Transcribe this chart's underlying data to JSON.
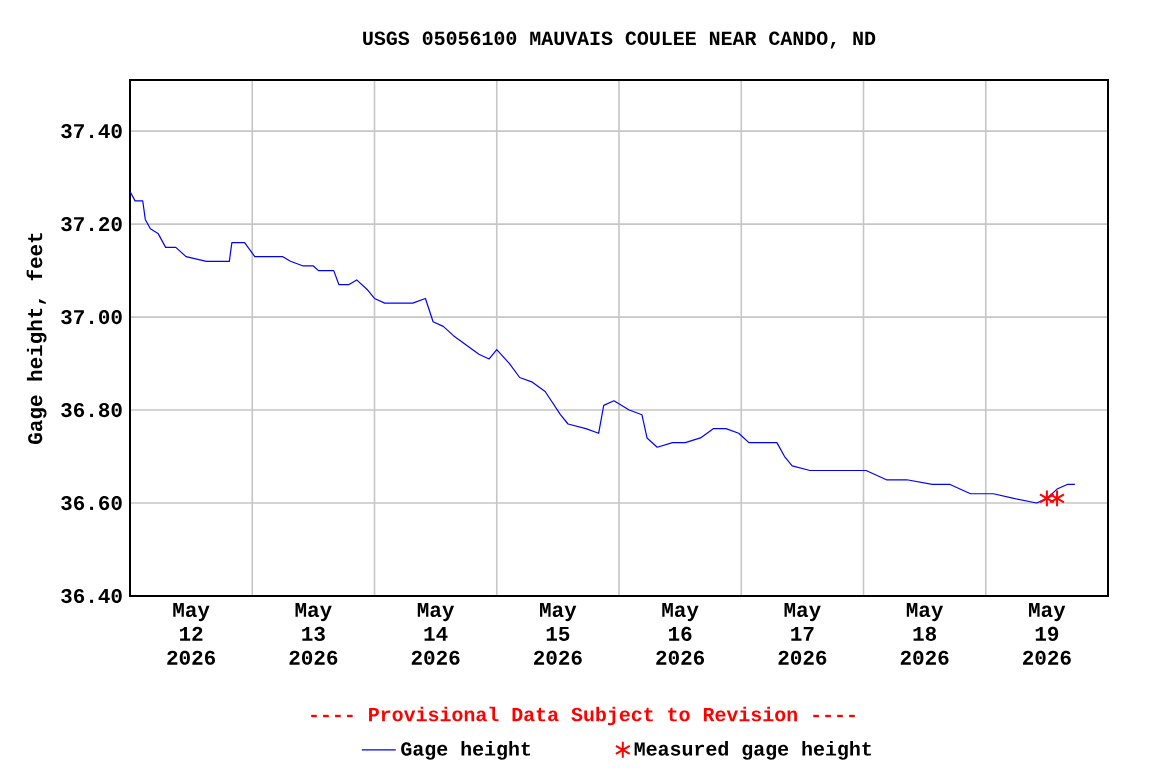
{
  "chart_data": {
    "type": "line",
    "title": "USGS 05056100 MAUVAIS COULEE NEAR CANDO, ND",
    "ylabel": "Gage height, feet",
    "annotations": [
      "---- Provisional Data Subject to Revision ----"
    ],
    "xlim": [
      "2026-05-12T00:00",
      "2026-05-20T00:00"
    ],
    "ylim": [
      36.4,
      37.51
    ],
    "xticks": [
      {
        "value": "2026-05-13T00:00",
        "label": null
      },
      {
        "value": "2026-05-14T00:00",
        "label": null
      },
      {
        "value": "2026-05-15T00:00",
        "label": null
      },
      {
        "value": "2026-05-16T00:00",
        "label": null
      },
      {
        "value": "2026-05-17T00:00",
        "label": null
      },
      {
        "value": "2026-05-18T00:00",
        "label": null
      },
      {
        "value": "2026-05-19T00:00",
        "label": null
      },
      {
        "value": "2026-05-12T12:00",
        "label": "May 12 2026"
      },
      {
        "value": "2026-05-13T12:00",
        "label": "May 13 2026"
      },
      {
        "value": "2026-05-14T12:00",
        "label": "May 14 2026"
      },
      {
        "value": "2026-05-15T12:00",
        "label": "May 15 2026"
      },
      {
        "value": "2026-05-16T12:00",
        "label": "May 16 2026"
      },
      {
        "value": "2026-05-17T12:00",
        "label": "May 17 2026"
      },
      {
        "value": "2026-05-18T12:00",
        "label": "May 18 2026"
      },
      {
        "value": "2026-05-19T12:00",
        "label": "May 19 2026"
      }
    ],
    "yticks": [
      {
        "value": 36.4,
        "label": "36.40"
      },
      {
        "value": 36.6,
        "label": "36.60"
      },
      {
        "value": 36.8,
        "label": "36.80"
      },
      {
        "value": 37.0,
        "label": "37.00"
      },
      {
        "value": 37.2,
        "label": "37.20"
      },
      {
        "value": 37.4,
        "label": "37.40"
      }
    ],
    "grid": true,
    "legend": "bottom",
    "series": [
      {
        "name": "Gage height",
        "color": "#0000ff",
        "marker": "none",
        "line_style": "solid",
        "x": [
          "2026-05-12T00:00",
          "2026-05-12T01:00",
          "2026-05-12T02:30",
          "2026-05-12T03:00",
          "2026-05-12T04:00",
          "2026-05-12T05:30",
          "2026-05-12T07:00",
          "2026-05-12T09:00",
          "2026-05-12T11:00",
          "2026-05-12T15:00",
          "2026-05-12T19:30",
          "2026-05-12T20:00",
          "2026-05-12T22:30",
          "2026-05-13T00:30",
          "2026-05-13T06:00",
          "2026-05-13T07:30",
          "2026-05-13T10:00",
          "2026-05-13T12:00",
          "2026-05-13T13:00",
          "2026-05-13T16:00",
          "2026-05-13T17:00",
          "2026-05-13T19:00",
          "2026-05-13T20:30",
          "2026-05-13T22:30",
          "2026-05-14T00:00",
          "2026-05-14T02:00",
          "2026-05-14T07:30",
          "2026-05-14T10:00",
          "2026-05-14T11:30",
          "2026-05-14T13:30",
          "2026-05-14T15:30",
          "2026-05-14T18:00",
          "2026-05-14T20:30",
          "2026-05-14T22:30",
          "2026-05-15T00:00",
          "2026-05-15T02:30",
          "2026-05-15T04:30",
          "2026-05-15T07:00",
          "2026-05-15T09:30",
          "2026-05-15T12:30",
          "2026-05-15T14:00",
          "2026-05-15T17:30",
          "2026-05-15T20:00",
          "2026-05-15T21:00",
          "2026-05-15T23:00",
          "2026-05-16T02:00",
          "2026-05-16T04:30",
          "2026-05-16T05:30",
          "2026-05-16T07:30",
          "2026-05-16T10:30",
          "2026-05-16T13:00",
          "2026-05-16T16:00",
          "2026-05-16T18:30",
          "2026-05-16T21:00",
          "2026-05-16T23:30",
          "2026-05-17T01:30",
          "2026-05-17T07:00",
          "2026-05-17T08:30",
          "2026-05-17T10:00",
          "2026-05-17T13:30",
          "2026-05-17T16:30",
          "2026-05-17T20:30",
          "2026-05-18T00:30",
          "2026-05-18T04:30",
          "2026-05-18T08:30",
          "2026-05-18T13:30",
          "2026-05-18T17:00",
          "2026-05-18T21:00",
          "2026-05-19T01:30",
          "2026-05-19T05:30",
          "2026-05-19T10:00",
          "2026-05-19T12:00",
          "2026-05-19T14:00",
          "2026-05-19T16:00",
          "2026-05-19T17:30"
        ],
        "values": [
          37.27,
          37.25,
          37.25,
          37.21,
          37.19,
          37.18,
          37.15,
          37.15,
          37.13,
          37.12,
          37.12,
          37.16,
          37.16,
          37.13,
          37.13,
          37.12,
          37.11,
          37.11,
          37.1,
          37.1,
          37.07,
          37.07,
          37.08,
          37.06,
          37.04,
          37.03,
          37.03,
          37.04,
          36.99,
          36.98,
          36.96,
          36.94,
          36.92,
          36.91,
          36.93,
          36.9,
          36.87,
          36.86,
          36.84,
          36.79,
          36.77,
          36.76,
          36.75,
          36.81,
          36.82,
          36.8,
          36.79,
          36.74,
          36.72,
          36.73,
          36.73,
          36.74,
          36.76,
          36.76,
          36.75,
          36.73,
          36.73,
          36.7,
          36.68,
          36.67,
          36.67,
          36.67,
          36.67,
          36.65,
          36.65,
          36.64,
          36.64,
          36.62,
          36.62,
          36.61,
          36.6,
          36.61,
          36.63,
          36.64,
          36.64
        ]
      },
      {
        "name": "Measured gage height",
        "type": "scatter",
        "color": "#ff0000",
        "marker": "cross",
        "x": [
          "2026-05-19T12:00",
          "2026-05-19T14:00"
        ],
        "values": [
          36.61,
          36.61
        ]
      }
    ]
  }
}
